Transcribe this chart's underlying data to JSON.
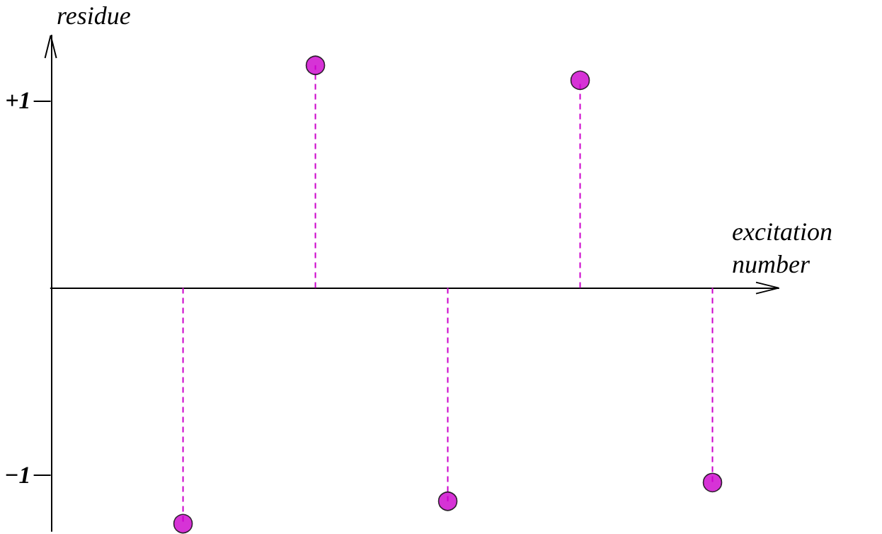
{
  "chart_data": {
    "type": "lollipop",
    "xlabel": "excitation number",
    "ylabel": "residue",
    "categories": [
      null,
      null,
      null,
      null,
      null
    ],
    "series": [
      {
        "color": "#cc00cc",
        "values": [
          -1.26,
          1.19,
          -1.14,
          1.11,
          -1.04
        ]
      }
    ],
    "ylim": [
      -1.3,
      1.35
    ],
    "yticks": [
      {
        "value": -1,
        "label": "−1"
      },
      {
        "value": 1,
        "label": "+1"
      }
    ],
    "tick_labels": "y",
    "grid": false,
    "marker": "circle",
    "line_style": "dashed"
  }
}
